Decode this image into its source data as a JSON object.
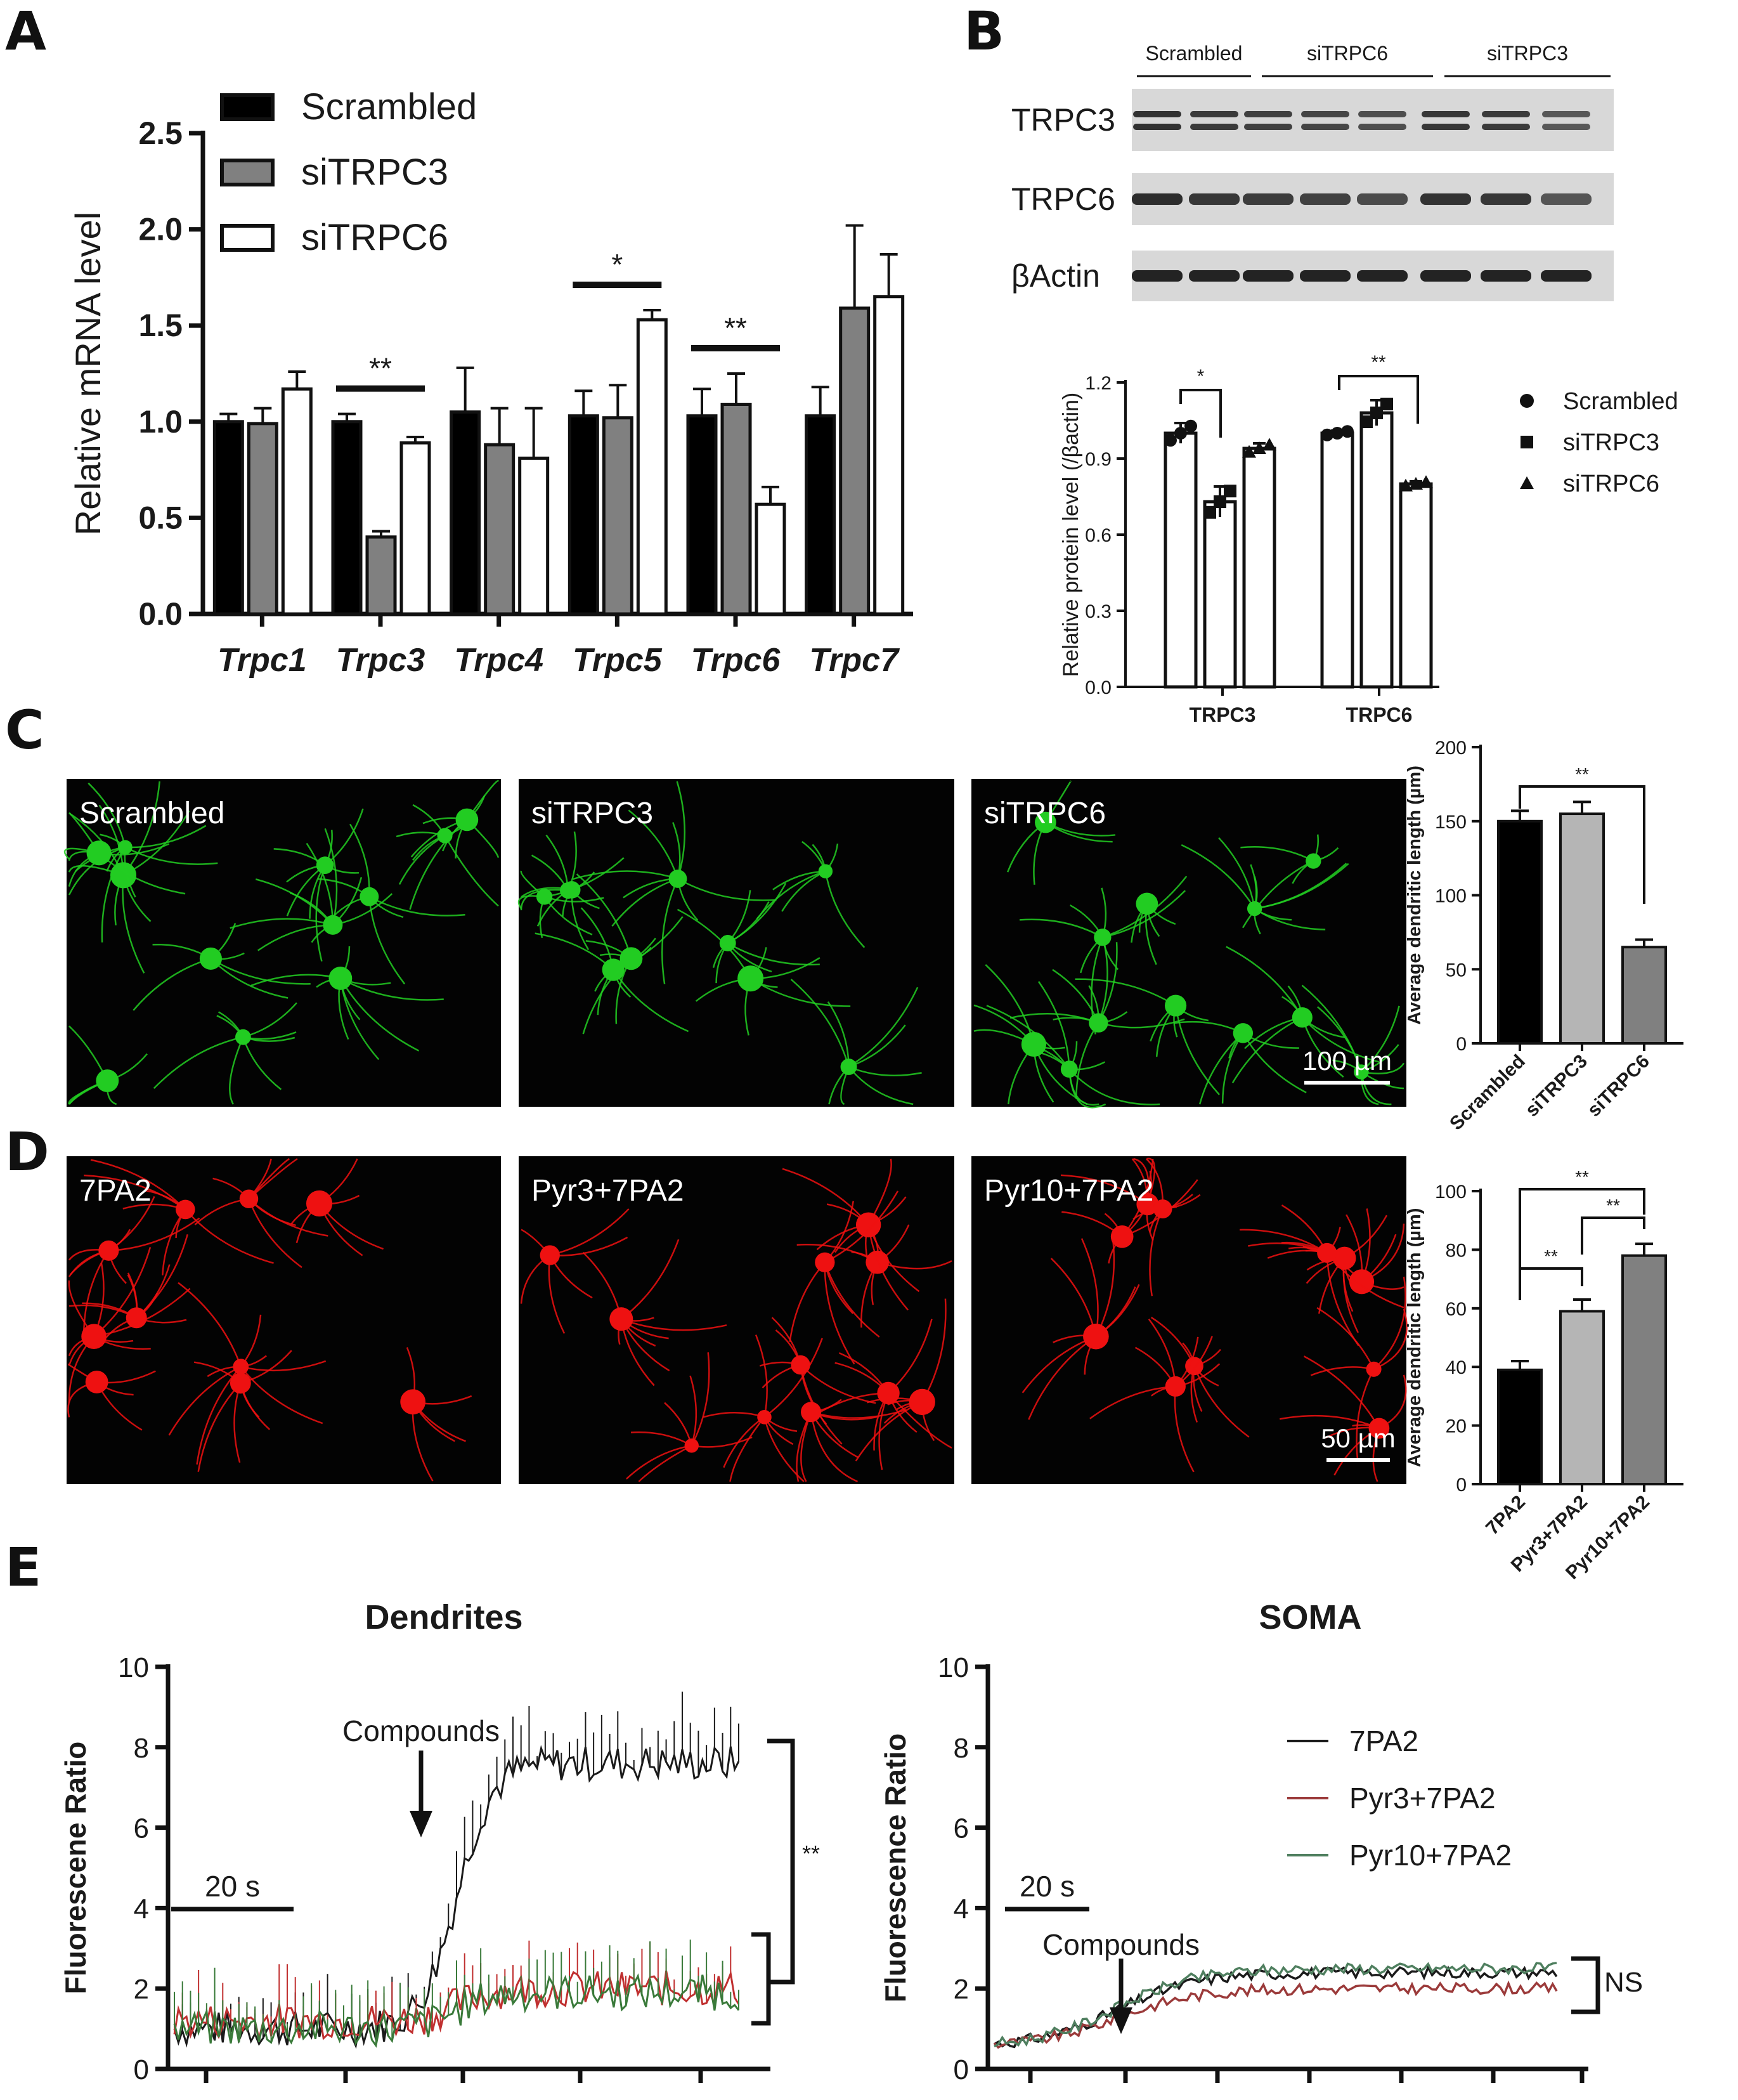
{
  "panels": {
    "A": "A",
    "B": "B",
    "C": "C",
    "D": "D",
    "E": "E"
  },
  "chart_data": [
    {
      "id": "A",
      "type": "bar",
      "ylabel": "Relative mRNA level",
      "ylim": [
        0,
        2.5
      ],
      "yticks": [
        "0.0",
        "0.5",
        "1.0",
        "1.5",
        "2.0",
        "2.5"
      ],
      "categories": [
        "Trpc1",
        "Trpc3",
        "Trpc4",
        "Trpc5",
        "Trpc6",
        "Trpc7"
      ],
      "legend": "top-left",
      "series": [
        {
          "name": "Scrambled",
          "color": "#000000",
          "values": [
            1.0,
            1.0,
            1.05,
            1.03,
            1.03,
            1.03
          ],
          "err": [
            0.04,
            0.04,
            0.23,
            0.13,
            0.14,
            0.15
          ]
        },
        {
          "name": "siTRPC3",
          "color": "#808080",
          "values": [
            0.99,
            0.4,
            0.88,
            1.02,
            1.09,
            1.59
          ],
          "err": [
            0.08,
            0.03,
            0.19,
            0.17,
            0.16,
            0.43
          ]
        },
        {
          "name": "siTRPC6",
          "color": "#ffffff",
          "values": [
            1.17,
            0.89,
            0.81,
            1.53,
            0.57,
            1.65
          ],
          "err": [
            0.09,
            0.03,
            0.26,
            0.05,
            0.09,
            0.22
          ]
        }
      ],
      "significance": [
        {
          "category": "Trpc3",
          "label": "**"
        },
        {
          "category": "Trpc5",
          "label": "*"
        },
        {
          "category": "Trpc6",
          "label": "**"
        }
      ]
    },
    {
      "id": "B",
      "type": "bar",
      "ylabel": "Relative protein level (/βactin)",
      "ylim": [
        0,
        1.2
      ],
      "yticks": [
        "0.0",
        "0.3",
        "0.6",
        "0.9",
        "1.2"
      ],
      "categories": [
        "TRPC3",
        "TRPC6"
      ],
      "legend": "right",
      "series": [
        {
          "name": "Scrambled",
          "marker": "circle",
          "values": [
            1.0,
            1.0
          ],
          "err": [
            0.04,
            0.01
          ]
        },
        {
          "name": "siTRPC3",
          "marker": "square",
          "values": [
            0.73,
            1.08
          ],
          "err": [
            0.06,
            0.05
          ]
        },
        {
          "name": "siTRPC6",
          "marker": "triangle",
          "values": [
            0.94,
            0.8
          ],
          "err": [
            0.02,
            0.01
          ]
        }
      ],
      "significance": [
        {
          "category": "TRPC3",
          "label": "*"
        },
        {
          "category": "TRPC6",
          "label": "**"
        }
      ]
    },
    {
      "id": "C",
      "type": "bar",
      "ylabel": "Average dendritic length (µm)",
      "ylim": [
        0,
        200
      ],
      "yticks": [
        "0",
        "50",
        "100",
        "150",
        "200"
      ],
      "categories": [
        "Scrambled",
        "siTRPC3",
        "siTRPC6"
      ],
      "values": [
        150,
        155,
        65
      ],
      "err": [
        7,
        8,
        5
      ],
      "colors": [
        "#000000",
        "#b5b5b5",
        "#808080"
      ],
      "significance": [
        {
          "from": "Scrambled",
          "to": "siTRPC6",
          "label": "**"
        }
      ]
    },
    {
      "id": "D",
      "type": "bar",
      "ylabel": "Average dendritic length (µm)",
      "ylim": [
        0,
        100
      ],
      "yticks": [
        "0",
        "20",
        "40",
        "60",
        "80",
        "100"
      ],
      "categories": [
        "7PA2",
        "Pyr3+7PA2",
        "Pyr10+7PA2"
      ],
      "values": [
        39,
        59,
        78
      ],
      "err": [
        3,
        4,
        4
      ],
      "colors": [
        "#000000",
        "#b5b5b5",
        "#808080"
      ],
      "significance": [
        {
          "from": "7PA2",
          "to": "Pyr3+7PA2",
          "label": "**"
        },
        {
          "from": "Pyr3+7PA2",
          "to": "Pyr10+7PA2",
          "label": "**"
        },
        {
          "from": "7PA2",
          "to": "Pyr10+7PA2",
          "label": "**"
        }
      ]
    },
    {
      "id": "E-dendrites",
      "type": "line",
      "title": "Dendrites",
      "ylabel": "Fluorescene Ratio",
      "ylim": [
        0,
        10
      ],
      "yticks": [
        "0",
        "2",
        "4",
        "6",
        "8",
        "10"
      ],
      "annotation": "Compounds",
      "scalebar": "20 s",
      "significance": "**",
      "series": [
        {
          "name": "7PA2",
          "color": "#1a1a1a",
          "baseline": 1.0,
          "plateau": 7.6
        },
        {
          "name": "Pyr3+7PA2",
          "color": "#c03030",
          "baseline": 1.2,
          "plateau": 2.0
        },
        {
          "name": "Pyr10+7PA2",
          "color": "#3a7a3a",
          "baseline": 1.0,
          "plateau": 1.9
        }
      ]
    },
    {
      "id": "E-soma",
      "type": "line",
      "title": "SOMA",
      "ylabel": "Fluorescence Ratio",
      "ylim": [
        0,
        10
      ],
      "yticks": [
        "0",
        "2",
        "4",
        "6",
        "8",
        "10"
      ],
      "annotation": "Compounds",
      "scalebar": "20 s",
      "significance": "NS",
      "legend": "top-right",
      "series": [
        {
          "name": "7PA2",
          "color": "#1a1a1a",
          "baseline": 0.55,
          "plateau": 2.4
        },
        {
          "name": "Pyr3+7PA2",
          "color": "#9b3a3a",
          "baseline": 0.55,
          "plateau": 2.0
        },
        {
          "name": "Pyr10+7PA2",
          "color": "#4f7f5f",
          "baseline": 0.55,
          "plateau": 2.5
        }
      ]
    }
  ],
  "blot": {
    "groups": [
      "Scrambled",
      "siTRPC6",
      "siTRPC3"
    ],
    "rows": [
      "TRPC3",
      "TRPC6",
      "βActin"
    ]
  },
  "micrographs": {
    "C": [
      "Scrambled",
      "siTRPC3",
      "siTRPC6"
    ],
    "D": [
      "7PA2",
      "Pyr3+7PA2",
      "Pyr10+7PA2"
    ],
    "C_scale": "100 µm",
    "D_scale": "50 µm",
    "C_color": "#22cc22",
    "D_color": "#ee1111"
  }
}
